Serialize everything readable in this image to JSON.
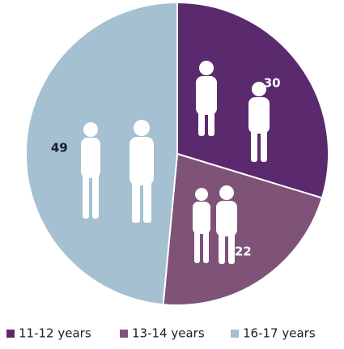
{
  "chart_data": {
    "type": "pie",
    "categories": [
      "11-12 years",
      "13-14 years",
      "16-17 years"
    ],
    "values": [
      30,
      22,
      49
    ],
    "colors": [
      "#5b2a6e",
      "#7e5377",
      "#a4c0d1"
    ],
    "label_colors": [
      "#ffffff",
      "#ffffff",
      "#1c1c2a"
    ],
    "legend": "bottom"
  }
}
